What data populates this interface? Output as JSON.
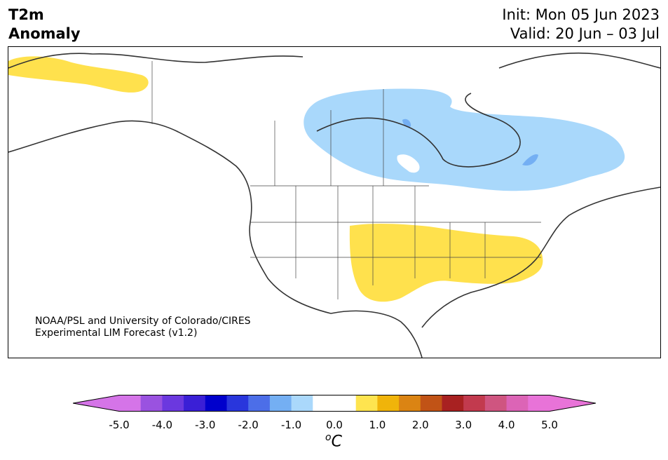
{
  "header": {
    "variable": "T2m",
    "variable_sub": "Anomaly",
    "init": "Init: Mon 05 Jun 2023",
    "valid": "Valid: 20 Jun – 03 Jul"
  },
  "map": {
    "credit_line1": "NOAA/PSL and University of Colorado/CIRES",
    "credit_line2": "Experimental LIM Forecast (v1.2)",
    "region": "North America",
    "anomalies": [
      {
        "area": "Alaska / northwest",
        "sign": "warm",
        "color": "#ffe14d"
      },
      {
        "area": "Central Canada to Hudson Bay and Quebec",
        "sign": "cool",
        "color": "#a9d8fb"
      },
      {
        "area": "Southern Plains to Mid-Atlantic",
        "sign": "warm",
        "color": "#ffe14d"
      }
    ]
  },
  "colorbar": {
    "unit": "C",
    "unit_prefix": "o",
    "tick_labels": [
      "-5.0",
      "-4.0",
      "-3.0",
      "-2.0",
      "-1.0",
      "0.0",
      "1.0",
      "2.0",
      "3.0",
      "4.0",
      "5.0"
    ],
    "colors": [
      "#d574e8",
      "#9a52e0",
      "#6b38df",
      "#3a1fd6",
      "#0000cc",
      "#2936dc",
      "#4c6ee8",
      "#74aff3",
      "#aad8fb",
      "#ffffff",
      "#ffffff",
      "#fee44f",
      "#f0b40a",
      "#db8413",
      "#c15316",
      "#a82121",
      "#c23a4e",
      "#cf5580",
      "#dc64b6",
      "#e873d8"
    ],
    "under_color": "#d574e8",
    "over_color": "#e873d8"
  }
}
